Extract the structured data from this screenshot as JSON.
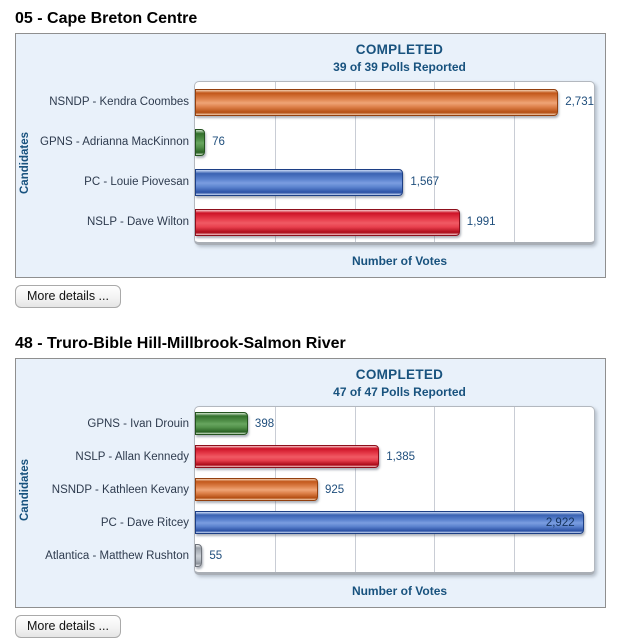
{
  "sections": [
    {
      "heading": "05 - Cape Breton Centre",
      "more_details_label": "More details ..."
    },
    {
      "heading": "48 - Truro-Bible Hill-Millbrook-Salmon River",
      "more_details_label": "More details ..."
    }
  ],
  "chart_data": [
    {
      "type": "bar",
      "orientation": "horizontal",
      "title": "COMPLETED",
      "subtitle": "39 of 39 Polls Reported",
      "categories": [
        "NSNDP - Kendra Coombes",
        "GPNS - Adrianna MacKinnon",
        "PC - Louie Piovesan",
        "NSLP - Dave Wilton"
      ],
      "values": [
        2731,
        76,
        1567,
        1991
      ],
      "value_labels": [
        "2,731",
        "76",
        "1,567",
        "1,991"
      ],
      "bar_color_names": [
        "orange",
        "green",
        "blue",
        "red"
      ],
      "bar_color_hex": [
        "#d97a3d",
        "#4e8c4e",
        "#4a71c2",
        "#dd2233"
      ],
      "xlabel": "Number of Votes",
      "ylabel": "Candidates",
      "xlim": [
        0,
        3000
      ],
      "gridline_step": 600,
      "grid": true,
      "legend": false
    },
    {
      "type": "bar",
      "orientation": "horizontal",
      "title": "COMPLETED",
      "subtitle": "47 of 47 Polls Reported",
      "categories": [
        "GPNS - Ivan Drouin",
        "NSLP - Allan Kennedy",
        "NSNDP - Kathleen Kevany",
        "PC - Dave Ritcey",
        "Atlantica - Matthew Rushton"
      ],
      "values": [
        398,
        1385,
        925,
        2922,
        55
      ],
      "value_labels": [
        "398",
        "1,385",
        "925",
        "2,922",
        "55"
      ],
      "bar_color_names": [
        "green",
        "red",
        "orange",
        "blue",
        "gray"
      ],
      "bar_color_hex": [
        "#4e8c4e",
        "#dd2233",
        "#d97a3d",
        "#4a71c2",
        "#a3a8b0"
      ],
      "xlabel": "Number of Votes",
      "ylabel": "Candidates",
      "xlim": [
        0,
        3000
      ],
      "gridline_step": 600,
      "grid": true,
      "legend": false
    }
  ],
  "colors": {
    "panel_background": "#e9f1fa",
    "panel_border": "#8f8f8f",
    "header_text": "#18527e",
    "value_text": "#1f4e7c",
    "label_text": "#2e3b4e",
    "gridline": "#c9cdd5"
  }
}
